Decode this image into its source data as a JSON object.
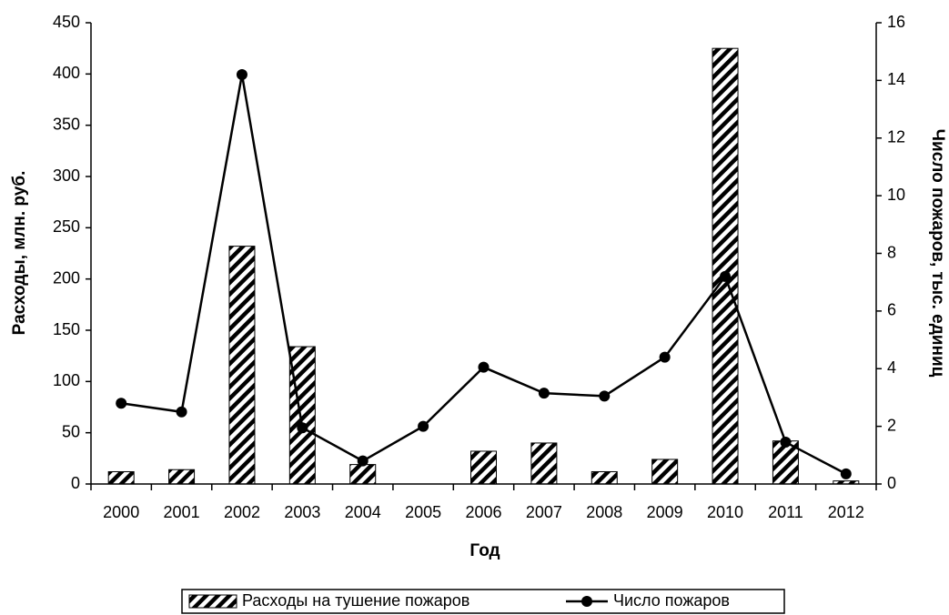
{
  "chart_data": {
    "type": "bar_line",
    "x_label": "Год",
    "y_label": "Расходы, млн. руб.",
    "y2_label": "Число пожаров,  тыс. единиц",
    "categories": [
      "2000",
      "2001",
      "2002",
      "2003",
      "2004",
      "2005",
      "2006",
      "2007",
      "2008",
      "2009",
      "2010",
      "2011",
      "2012"
    ],
    "series": [
      {
        "name": "Расходы на тушение пожаров",
        "type": "bar",
        "color": "#000000",
        "values": [
          12,
          14,
          232,
          134,
          19,
          null,
          32,
          40,
          12,
          24,
          425,
          42,
          3
        ]
      },
      {
        "name": "Число пожаров",
        "type": "line",
        "axis": "y2",
        "color": "#000000",
        "values": [
          2.8,
          2.5,
          14.2,
          1.95,
          0.8,
          2.0,
          4.05,
          3.15,
          3.05,
          4.4,
          7.2,
          1.45,
          0.35
        ]
      }
    ],
    "ylim": [
      0,
      450
    ],
    "yticks": [
      0,
      50,
      100,
      150,
      200,
      250,
      300,
      350,
      400,
      450
    ],
    "y2lim": [
      0,
      16
    ],
    "y2ticks": [
      0,
      2,
      4,
      6,
      8,
      10,
      12,
      14,
      16
    ],
    "legend": "bottom"
  }
}
